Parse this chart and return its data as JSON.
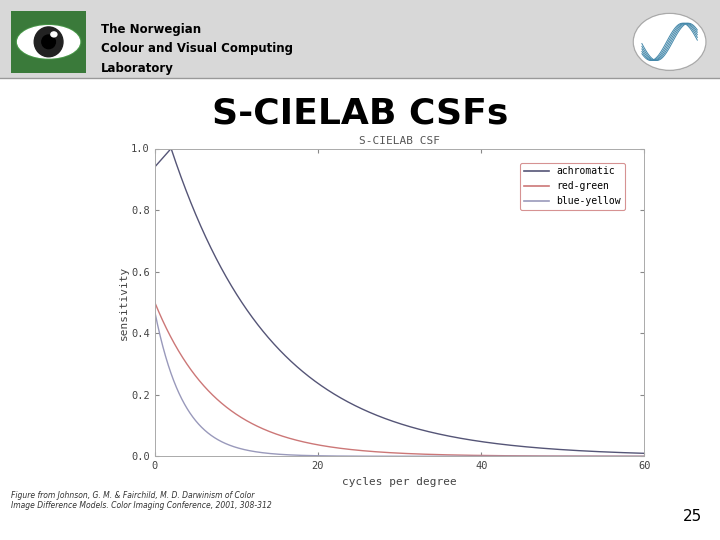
{
  "title": "S-CIELAB CSFs",
  "chart_title": "S-CIELAB CSF",
  "xlabel": "cycles per degree",
  "ylabel": "sensitivity",
  "xlim": [
    0,
    60
  ],
  "ylim": [
    0.0,
    1.0
  ],
  "xticks": [
    0,
    20,
    40,
    60
  ],
  "yticks": [
    0.0,
    0.2,
    0.4,
    0.6,
    0.8,
    1.0
  ],
  "legend_labels": [
    "achromatic",
    "red-green",
    "blue-yellow"
  ],
  "achromatic_color": "#555577",
  "red_green_color": "#cc7777",
  "blue_yellow_color": "#9999bb",
  "slide_bg": "#f2f2f2",
  "header_bg": "#e0e0e0",
  "caption": "Figure from Johnson, G. M. & Fairchild, M. D. Darwinism of Color\nImage Difference Models. Color Imaging Conference, 2001, 308-312",
  "slide_number": "25",
  "logo_text_line1": "The Norwegian",
  "logo_text_line2": "Colour and Visual Computing",
  "logo_text_line3": "Laboratory",
  "header_line_color": "#888888"
}
